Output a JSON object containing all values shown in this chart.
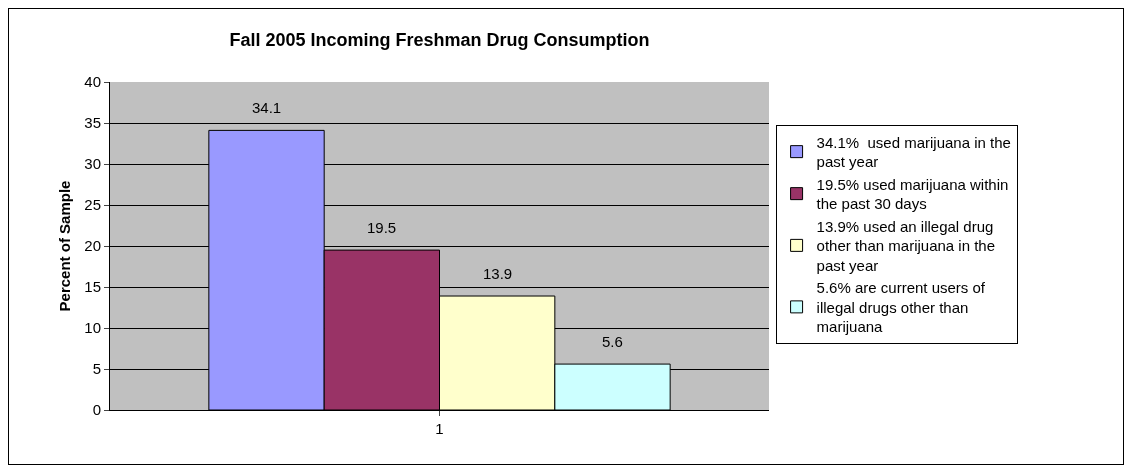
{
  "chart_data": {
    "type": "bar",
    "title": "Fall 2005 Incoming Freshman Drug Consumption",
    "ylabel": "Percent of Sample",
    "categories": [
      "1"
    ],
    "series": [
      {
        "name": "34.1%  used marijuana in the past year",
        "color": "#9999ff",
        "values": [
          34.1
        ]
      },
      {
        "name": "19.5% used marijuana within the past 30 days",
        "color": "#993366",
        "values": [
          19.5
        ]
      },
      {
        "name": "13.9% used an illegal drug other than marijuana in the past year",
        "color": "#ffffcc",
        "values": [
          13.9
        ]
      },
      {
        "name": "5.6% are current users of illegal drugs other than marijuana",
        "color": "#ccffff",
        "values": [
          5.6
        ]
      }
    ],
    "ylim": [
      0,
      40
    ],
    "yticks": [
      0,
      5,
      10,
      15,
      20,
      25,
      30,
      35,
      40
    ],
    "grid": "y",
    "legend": "right",
    "data_labels": true
  }
}
